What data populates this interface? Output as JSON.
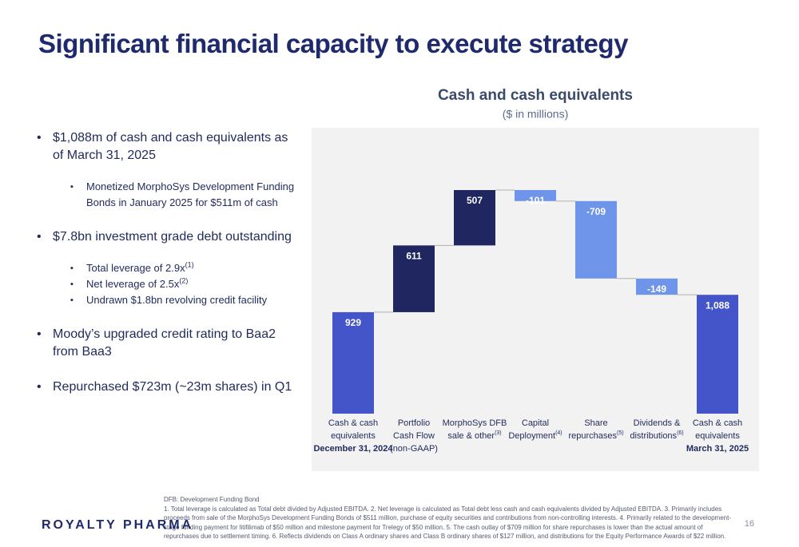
{
  "title": "Significant financial capacity to execute strategy",
  "bullets": [
    {
      "text": "$1,088m of cash and cash equivalents as of March 31, 2025",
      "subs": [
        {
          "text": "Monetized MorphoSys Development Funding Bonds in January 2025 for $511m of cash"
        }
      ]
    },
    {
      "text": "$7.8bn investment grade debt outstanding",
      "subs": [
        {
          "text": "Total leverage of 2.9x",
          "sup": "(1)"
        },
        {
          "text": "Net leverage of 2.5x",
          "sup": "(2)"
        },
        {
          "text": "Undrawn $1.8bn revolving credit facility"
        }
      ]
    },
    {
      "text": "Moody’s upgraded credit rating to Baa2 from Baa3"
    },
    {
      "text": "Repurchased $723m (~23m shares) in Q1"
    }
  ],
  "chart_data": {
    "type": "waterfall",
    "title": "Cash and cash equivalents",
    "subtitle": "($ in millions)",
    "categories": [
      {
        "lines": [
          "Cash & cash",
          "equivalents"
        ],
        "bold": "December 31, 2024"
      },
      {
        "lines": [
          "Portfolio",
          "Cash Flow",
          "(non-GAAP)"
        ]
      },
      {
        "lines": [
          "MorphoSys DFB",
          "sale & other"
        ],
        "sup": "(3)"
      },
      {
        "lines": [
          "Capital",
          "Deployment"
        ],
        "sup": "(4)"
      },
      {
        "lines": [
          "Share",
          "repurchases"
        ],
        "sup": "(5)"
      },
      {
        "lines": [
          "Dividends &",
          "distributions"
        ],
        "sup": "(6)"
      },
      {
        "lines": [
          "Cash & cash",
          "equivalents"
        ],
        "bold": "March 31, 2025"
      }
    ],
    "values": [
      929,
      611,
      507,
      -101,
      -709,
      -149,
      1088
    ],
    "value_labels": [
      "929",
      "611",
      "507",
      "-101",
      "-709",
      "-149",
      "1,088"
    ],
    "measure": [
      "total",
      "relative",
      "relative",
      "relative",
      "relative",
      "relative",
      "total"
    ],
    "colors": {
      "total": "#4355c9",
      "increase": "#1f2660",
      "decrease": "#6f95ea"
    },
    "background": "#f2f2f2"
  },
  "footnotes": [
    "DFB: Development Funding Bond",
    "1. Total leverage is calculated as Total debt divided by Adjusted EBITDA. 2. Net leverage is calculated as Total debt less cash and cash equivalents divided by Adjusted EBITDA. 3. Primarily includes proceeds from sale of the MorphoSys Development Funding Bonds of $511 million, purchase of equity securities and contributions from non-controlling interests.  4. Primarily related to the development-stage funding payment for litifilimab of $50 million and milestone payment for Trelegy of $50 million. 5. The cash outlay of $709 million for share repurchases is lower than the actual amount of repurchases due to settlement timing. 6. Reflects dividends on Class A ordinary shares and Class B ordinary shares of $127 million, and distributions for the Equity Performance Awards of $22 million."
  ],
  "logo": "ROYALTY PHARMA",
  "page_number": "16"
}
